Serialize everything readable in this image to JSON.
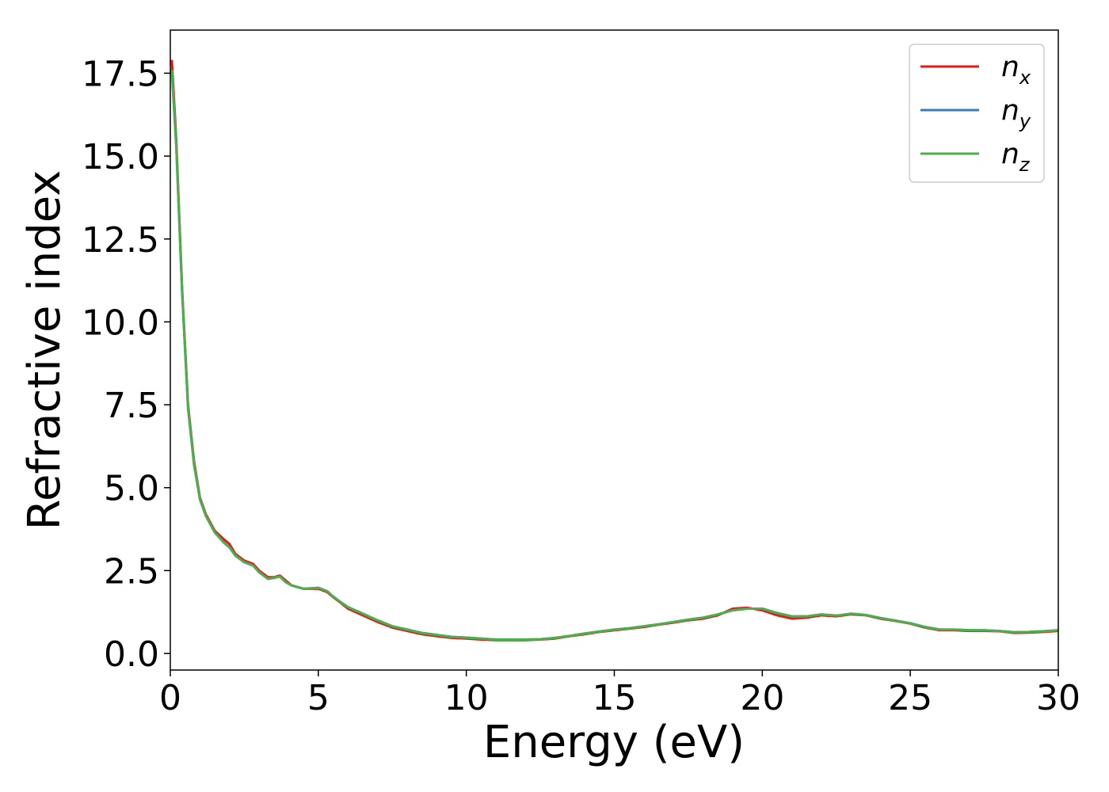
{
  "chart_data": {
    "type": "line",
    "title": "",
    "xlabel": "Energy (eV)",
    "ylabel": "Refractive index",
    "xlim": [
      0,
      30
    ],
    "ylim": [
      -0.5,
      18.8
    ],
    "xticks": [
      0,
      5,
      10,
      15,
      20,
      25,
      30
    ],
    "xtick_labels": [
      "0",
      "5",
      "10",
      "15",
      "20",
      "25",
      "30"
    ],
    "yticks": [
      0,
      2.5,
      5,
      7.5,
      10,
      12.5,
      15,
      17.5
    ],
    "ytick_labels": [
      "0.0",
      "2.5",
      "5.0",
      "7.5",
      "10.0",
      "12.5",
      "15.0",
      "17.5"
    ],
    "grid": false,
    "legend_position": "top-right",
    "series": [
      {
        "name": "n_x",
        "label_main": "n",
        "label_sub": "x",
        "color": "#e41a1c",
        "x": [
          0.05,
          0.2,
          0.4,
          0.6,
          0.8,
          1.0,
          1.2,
          1.5,
          1.8,
          2.0,
          2.2,
          2.5,
          2.8,
          3.0,
          3.3,
          3.5,
          3.7,
          3.9,
          4.1,
          4.5,
          5.0,
          5.3,
          5.5,
          5.8,
          6.0,
          6.5,
          7.0,
          7.5,
          8.0,
          8.5,
          9.0,
          9.5,
          10.0,
          10.5,
          11.0,
          11.5,
          12.0,
          12.5,
          13.0,
          13.5,
          14.0,
          14.5,
          15.0,
          15.5,
          16.0,
          16.5,
          17.0,
          17.5,
          18.0,
          18.5,
          19.0,
          19.5,
          20.0,
          20.5,
          21.0,
          21.5,
          22.0,
          22.5,
          23.0,
          23.5,
          24.0,
          24.5,
          25.0,
          25.5,
          26.0,
          26.5,
          27.0,
          27.5,
          28.0,
          28.5,
          29.0,
          29.5,
          30.0
        ],
        "y": [
          17.9,
          15.5,
          11.0,
          7.5,
          5.8,
          4.7,
          4.2,
          3.7,
          3.45,
          3.3,
          3.0,
          2.8,
          2.7,
          2.5,
          2.3,
          2.3,
          2.35,
          2.2,
          2.05,
          1.95,
          1.95,
          1.85,
          1.7,
          1.5,
          1.35,
          1.15,
          0.95,
          0.78,
          0.68,
          0.58,
          0.52,
          0.47,
          0.45,
          0.42,
          0.4,
          0.4,
          0.4,
          0.42,
          0.45,
          0.52,
          0.58,
          0.65,
          0.7,
          0.75,
          0.8,
          0.87,
          0.93,
          1.0,
          1.05,
          1.15,
          1.35,
          1.38,
          1.3,
          1.15,
          1.05,
          1.08,
          1.15,
          1.12,
          1.18,
          1.15,
          1.05,
          0.98,
          0.9,
          0.78,
          0.7,
          0.7,
          0.68,
          0.68,
          0.67,
          0.62,
          0.63,
          0.65,
          0.68
        ]
      },
      {
        "name": "n_y",
        "label_main": "n",
        "label_sub": "y",
        "color": "#377eb8",
        "x": [
          0.05,
          0.2,
          0.4,
          0.6,
          0.8,
          1.0,
          1.2,
          1.5,
          1.8,
          2.0,
          2.2,
          2.5,
          2.8,
          3.0,
          3.3,
          3.5,
          3.7,
          3.9,
          4.1,
          4.5,
          5.0,
          5.3,
          5.5,
          5.8,
          6.0,
          6.5,
          7.0,
          7.5,
          8.0,
          8.5,
          9.0,
          9.5,
          10.0,
          10.5,
          11.0,
          11.5,
          12.0,
          12.5,
          13.0,
          13.5,
          14.0,
          14.5,
          15.0,
          15.5,
          16.0,
          16.5,
          17.0,
          17.5,
          18.0,
          18.5,
          19.0,
          19.5,
          20.0,
          20.5,
          21.0,
          21.5,
          22.0,
          22.5,
          23.0,
          23.5,
          24.0,
          24.5,
          25.0,
          25.5,
          26.0,
          26.5,
          27.0,
          27.5,
          28.0,
          28.5,
          29.0,
          29.5,
          30.0
        ],
        "y": [
          17.6,
          15.3,
          10.9,
          7.4,
          5.7,
          4.65,
          4.15,
          3.65,
          3.35,
          3.2,
          2.95,
          2.75,
          2.65,
          2.45,
          2.25,
          2.28,
          2.32,
          2.15,
          2.05,
          1.95,
          1.98,
          1.88,
          1.72,
          1.52,
          1.4,
          1.2,
          1.0,
          0.82,
          0.72,
          0.62,
          0.56,
          0.5,
          0.48,
          0.45,
          0.42,
          0.42,
          0.42,
          0.43,
          0.47,
          0.53,
          0.6,
          0.66,
          0.72,
          0.76,
          0.82,
          0.88,
          0.95,
          1.02,
          1.08,
          1.18,
          1.3,
          1.35,
          1.35,
          1.22,
          1.12,
          1.12,
          1.18,
          1.14,
          1.2,
          1.16,
          1.07,
          0.99,
          0.91,
          0.8,
          0.72,
          0.72,
          0.7,
          0.7,
          0.68,
          0.64,
          0.65,
          0.67,
          0.7
        ]
      },
      {
        "name": "n_z",
        "label_main": "n",
        "label_sub": "z",
        "color": "#4daf4a",
        "x": [
          0.05,
          0.2,
          0.4,
          0.6,
          0.8,
          1.0,
          1.2,
          1.5,
          1.8,
          2.0,
          2.2,
          2.5,
          2.8,
          3.0,
          3.3,
          3.5,
          3.7,
          3.9,
          4.1,
          4.5,
          5.0,
          5.3,
          5.5,
          5.8,
          6.0,
          6.5,
          7.0,
          7.5,
          8.0,
          8.5,
          9.0,
          9.5,
          10.0,
          10.5,
          11.0,
          11.5,
          12.0,
          12.5,
          13.0,
          13.5,
          14.0,
          14.5,
          15.0,
          15.5,
          16.0,
          16.5,
          17.0,
          17.5,
          18.0,
          18.5,
          19.0,
          19.5,
          20.0,
          20.5,
          21.0,
          21.5,
          22.0,
          22.5,
          23.0,
          23.5,
          24.0,
          24.5,
          25.0,
          25.5,
          26.0,
          26.5,
          27.0,
          27.5,
          28.0,
          28.5,
          29.0,
          29.5,
          30.0
        ],
        "y": [
          17.6,
          15.3,
          10.9,
          7.4,
          5.7,
          4.65,
          4.15,
          3.65,
          3.35,
          3.2,
          2.95,
          2.75,
          2.65,
          2.45,
          2.25,
          2.28,
          2.32,
          2.15,
          2.05,
          1.95,
          1.98,
          1.88,
          1.72,
          1.52,
          1.4,
          1.2,
          1.0,
          0.82,
          0.72,
          0.62,
          0.56,
          0.5,
          0.48,
          0.45,
          0.42,
          0.42,
          0.42,
          0.43,
          0.47,
          0.53,
          0.6,
          0.66,
          0.72,
          0.76,
          0.82,
          0.88,
          0.95,
          1.02,
          1.08,
          1.18,
          1.3,
          1.35,
          1.35,
          1.22,
          1.12,
          1.12,
          1.18,
          1.14,
          1.2,
          1.16,
          1.07,
          0.99,
          0.91,
          0.8,
          0.72,
          0.72,
          0.7,
          0.7,
          0.68,
          0.64,
          0.65,
          0.67,
          0.7
        ]
      }
    ]
  }
}
